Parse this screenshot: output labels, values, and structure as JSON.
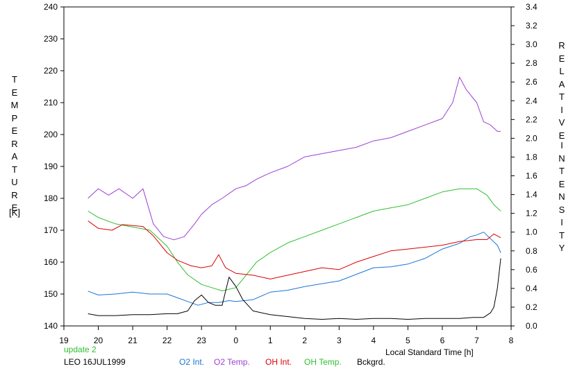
{
  "chart_data": {
    "type": "line",
    "left_axis_label_letters": [
      "T",
      "E",
      "M",
      "P",
      "E",
      "R",
      "A",
      "T",
      "U",
      "R",
      "E"
    ],
    "left_axis_unit": "[K]",
    "right_axis_word1": [
      "R",
      "E",
      "L",
      "A",
      "T",
      "I",
      "V",
      "E"
    ],
    "right_axis_word2": [
      "I",
      "N",
      "T",
      "E",
      "N",
      "S",
      "I",
      "T",
      "Y"
    ],
    "xlabel": "Local Standard Time [h]",
    "x_ticks": [
      19,
      20,
      21,
      22,
      23,
      0,
      1,
      2,
      3,
      4,
      5,
      6,
      7,
      8
    ],
    "x_range": [
      19,
      32
    ],
    "y_left_range": [
      140,
      240
    ],
    "y_left_ticks": [
      140,
      150,
      160,
      170,
      180,
      190,
      200,
      210,
      220,
      230,
      240
    ],
    "y_right_range": [
      0.0,
      3.4
    ],
    "y_right_ticks": [
      "0.0",
      "0.2",
      "0.4",
      "0.6",
      "0.8",
      "1.0",
      "1.2",
      "1.4",
      "1.6",
      "1.8",
      "2.0",
      "2.2",
      "2.4",
      "2.6",
      "2.8",
      "3.0",
      "3.2",
      "3.4"
    ],
    "series": [
      {
        "name": "O2 Int.",
        "axis": "right",
        "color": "#1a74d6",
        "points": [
          [
            19.7,
            0.37
          ],
          [
            20.0,
            0.33
          ],
          [
            20.5,
            0.34
          ],
          [
            21.0,
            0.36
          ],
          [
            21.5,
            0.34
          ],
          [
            22.0,
            0.34
          ],
          [
            22.3,
            0.3
          ],
          [
            22.6,
            0.26
          ],
          [
            22.9,
            0.22
          ],
          [
            23.2,
            0.25
          ],
          [
            23.5,
            0.25
          ],
          [
            23.8,
            0.27
          ],
          [
            24.0,
            0.26
          ],
          [
            24.5,
            0.28
          ],
          [
            25.0,
            0.36
          ],
          [
            25.5,
            0.38
          ],
          [
            26.0,
            0.42
          ],
          [
            26.5,
            0.45
          ],
          [
            27.0,
            0.48
          ],
          [
            27.5,
            0.55
          ],
          [
            28.0,
            0.62
          ],
          [
            28.5,
            0.63
          ],
          [
            29.0,
            0.66
          ],
          [
            29.5,
            0.72
          ],
          [
            30.0,
            0.82
          ],
          [
            30.5,
            0.88
          ],
          [
            30.8,
            0.95
          ],
          [
            31.0,
            0.97
          ],
          [
            31.2,
            1.0
          ],
          [
            31.4,
            0.93
          ],
          [
            31.6,
            0.86
          ],
          [
            31.7,
            0.78
          ]
        ]
      },
      {
        "name": "O2 Temp.",
        "axis": "left",
        "color": "#9b3fd4",
        "points": [
          [
            19.7,
            180
          ],
          [
            20.0,
            183
          ],
          [
            20.3,
            181
          ],
          [
            20.6,
            183
          ],
          [
            21.0,
            180
          ],
          [
            21.3,
            183
          ],
          [
            21.6,
            172
          ],
          [
            21.9,
            168
          ],
          [
            22.2,
            167
          ],
          [
            22.5,
            168
          ],
          [
            22.8,
            172
          ],
          [
            23.0,
            175
          ],
          [
            23.3,
            178
          ],
          [
            23.6,
            180
          ],
          [
            24.0,
            183
          ],
          [
            24.3,
            184
          ],
          [
            24.6,
            186
          ],
          [
            25.0,
            188
          ],
          [
            25.5,
            190
          ],
          [
            26.0,
            193
          ],
          [
            26.5,
            194
          ],
          [
            27.0,
            195
          ],
          [
            27.5,
            196
          ],
          [
            28.0,
            198
          ],
          [
            28.5,
            199
          ],
          [
            29.0,
            201
          ],
          [
            29.5,
            203
          ],
          [
            30.0,
            205
          ],
          [
            30.3,
            210
          ],
          [
            30.5,
            218
          ],
          [
            30.7,
            214
          ],
          [
            31.0,
            210
          ],
          [
            31.2,
            204
          ],
          [
            31.4,
            203
          ],
          [
            31.6,
            201
          ],
          [
            31.7,
            201
          ]
        ]
      },
      {
        "name": "OH Int.",
        "axis": "right",
        "color": "#dd0000",
        "points": [
          [
            19.7,
            1.12
          ],
          [
            20.0,
            1.04
          ],
          [
            20.4,
            1.02
          ],
          [
            20.7,
            1.08
          ],
          [
            21.0,
            1.07
          ],
          [
            21.3,
            1.06
          ],
          [
            21.6,
            0.96
          ],
          [
            22.0,
            0.78
          ],
          [
            22.3,
            0.7
          ],
          [
            22.7,
            0.64
          ],
          [
            23.0,
            0.62
          ],
          [
            23.3,
            0.64
          ],
          [
            23.5,
            0.76
          ],
          [
            23.7,
            0.62
          ],
          [
            24.0,
            0.56
          ],
          [
            24.5,
            0.54
          ],
          [
            25.0,
            0.5
          ],
          [
            25.5,
            0.54
          ],
          [
            26.0,
            0.58
          ],
          [
            26.5,
            0.62
          ],
          [
            27.0,
            0.6
          ],
          [
            27.5,
            0.68
          ],
          [
            28.0,
            0.74
          ],
          [
            28.5,
            0.8
          ],
          [
            29.0,
            0.82
          ],
          [
            29.5,
            0.84
          ],
          [
            30.0,
            0.86
          ],
          [
            30.5,
            0.9
          ],
          [
            31.0,
            0.92
          ],
          [
            31.3,
            0.92
          ],
          [
            31.5,
            0.98
          ],
          [
            31.7,
            0.94
          ]
        ]
      },
      {
        "name": "OH Temp.",
        "axis": "left",
        "color": "#2fbf2f",
        "points": [
          [
            19.7,
            176
          ],
          [
            20.0,
            174
          ],
          [
            20.5,
            172
          ],
          [
            21.0,
            171
          ],
          [
            21.5,
            170
          ],
          [
            22.0,
            165
          ],
          [
            22.3,
            160
          ],
          [
            22.6,
            156
          ],
          [
            23.0,
            153
          ],
          [
            23.3,
            152
          ],
          [
            23.6,
            151
          ],
          [
            24.0,
            152
          ],
          [
            24.3,
            156
          ],
          [
            24.6,
            160
          ],
          [
            25.0,
            163
          ],
          [
            25.5,
            166
          ],
          [
            26.0,
            168
          ],
          [
            26.5,
            170
          ],
          [
            27.0,
            172
          ],
          [
            27.5,
            174
          ],
          [
            28.0,
            176
          ],
          [
            28.5,
            177
          ],
          [
            29.0,
            178
          ],
          [
            29.5,
            180
          ],
          [
            30.0,
            182
          ],
          [
            30.5,
            183
          ],
          [
            31.0,
            183
          ],
          [
            31.3,
            181
          ],
          [
            31.5,
            178
          ],
          [
            31.7,
            176
          ]
        ]
      },
      {
        "name": "Bckgrd.",
        "axis": "right",
        "color": "#000000",
        "points": [
          [
            19.7,
            0.13
          ],
          [
            20.0,
            0.11
          ],
          [
            20.5,
            0.11
          ],
          [
            21.0,
            0.12
          ],
          [
            21.5,
            0.12
          ],
          [
            22.0,
            0.13
          ],
          [
            22.3,
            0.13
          ],
          [
            22.6,
            0.16
          ],
          [
            22.8,
            0.27
          ],
          [
            23.0,
            0.33
          ],
          [
            23.2,
            0.25
          ],
          [
            23.4,
            0.22
          ],
          [
            23.6,
            0.22
          ],
          [
            23.8,
            0.52
          ],
          [
            24.0,
            0.42
          ],
          [
            24.2,
            0.28
          ],
          [
            24.5,
            0.16
          ],
          [
            25.0,
            0.12
          ],
          [
            25.5,
            0.1
          ],
          [
            26.0,
            0.08
          ],
          [
            26.5,
            0.07
          ],
          [
            27.0,
            0.08
          ],
          [
            27.5,
            0.07
          ],
          [
            28.0,
            0.08
          ],
          [
            28.5,
            0.08
          ],
          [
            29.0,
            0.07
          ],
          [
            29.5,
            0.08
          ],
          [
            30.0,
            0.08
          ],
          [
            30.5,
            0.08
          ],
          [
            30.9,
            0.09
          ],
          [
            31.2,
            0.09
          ],
          [
            31.4,
            0.14
          ],
          [
            31.5,
            0.2
          ],
          [
            31.6,
            0.4
          ],
          [
            31.7,
            0.72
          ]
        ]
      }
    ]
  },
  "footer": {
    "update_text": "update 2",
    "update_color": "#2fbf2f",
    "location_text": "LEO 16JUL1999"
  }
}
